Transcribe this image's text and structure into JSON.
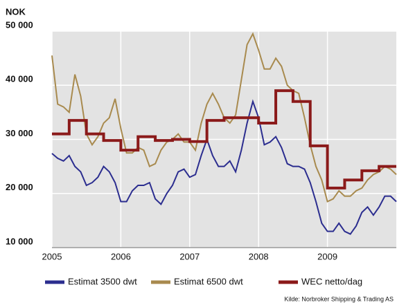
{
  "chart_data": {
    "type": "line",
    "y_axis_label": "NOK",
    "source": "Kilde: Norbroker Shipping & Trading AS",
    "xlim": [
      2005,
      2010
    ],
    "xticks": [
      2005,
      2006,
      2007,
      2008,
      2009
    ],
    "ylim": [
      10000,
      50000
    ],
    "yticks": [
      {
        "value": 10000,
        "label": "10 000"
      },
      {
        "value": 20000,
        "label": "20 000"
      },
      {
        "value": 30000,
        "label": "30 000"
      },
      {
        "value": 40000,
        "label": "40 000"
      },
      {
        "value": 50000,
        "label": "50 000"
      }
    ],
    "grid": true,
    "x": [
      2005,
      2005.083,
      2005.167,
      2005.25,
      2005.333,
      2005.417,
      2005.5,
      2005.583,
      2005.667,
      2005.75,
      2005.833,
      2005.917,
      2006,
      2006.083,
      2006.167,
      2006.25,
      2006.333,
      2006.417,
      2006.5,
      2006.583,
      2006.667,
      2006.75,
      2006.833,
      2006.917,
      2007,
      2007.083,
      2007.167,
      2007.25,
      2007.333,
      2007.417,
      2007.5,
      2007.583,
      2007.667,
      2007.75,
      2007.833,
      2007.917,
      2008,
      2008.083,
      2008.167,
      2008.25,
      2008.333,
      2008.417,
      2008.5,
      2008.583,
      2008.667,
      2008.75,
      2008.833,
      2008.917,
      2009,
      2009.083,
      2009.167,
      2009.25,
      2009.333,
      2009.417,
      2009.5,
      2009.583,
      2009.667,
      2009.75,
      2009.833,
      2009.917,
      2010
    ],
    "series": [
      {
        "name": "Estimat 3500 dwt",
        "color": "#2b2d8f",
        "step": false,
        "values": [
          27400,
          26500,
          26000,
          27000,
          25000,
          24000,
          21500,
          22000,
          23000,
          25000,
          24000,
          22000,
          18500,
          18500,
          20500,
          21500,
          21500,
          22000,
          19000,
          18000,
          20000,
          21500,
          24000,
          24500,
          23000,
          23500,
          27000,
          30000,
          27000,
          25000,
          25000,
          26000,
          24000,
          28000,
          33000,
          37000,
          34000,
          29000,
          29500,
          30500,
          28500,
          25500,
          25000,
          25000,
          24500,
          22000,
          18500,
          14500,
          13000,
          13000,
          14500,
          13000,
          12500,
          14000,
          16500,
          17500,
          16000,
          17500,
          19500,
          19500,
          18500
        ]
      },
      {
        "name": "Estimat 6500 dwt",
        "color": "#a88a4e",
        "step": false,
        "values": [
          45500,
          36500,
          36000,
          35000,
          42000,
          38000,
          31000,
          29000,
          30500,
          33000,
          34000,
          37500,
          32000,
          27500,
          27500,
          28500,
          28000,
          25000,
          25500,
          28000,
          29500,
          30000,
          31000,
          29500,
          29500,
          28000,
          33000,
          36500,
          38500,
          36500,
          34000,
          33000,
          34500,
          41000,
          47500,
          49500,
          46500,
          43000,
          43000,
          45000,
          43500,
          40000,
          39000,
          38500,
          34000,
          29000,
          25000,
          22500,
          18500,
          19000,
          20500,
          19500,
          19500,
          20500,
          21000,
          22500,
          23500,
          24000,
          25000,
          24500,
          23500
        ]
      },
      {
        "name": "WEC netto/dag",
        "color": "#8b1a1a",
        "step": true,
        "values": [
          31000,
          31000,
          31000,
          33500,
          33500,
          33500,
          31000,
          31000,
          31000,
          29800,
          29800,
          29800,
          28000,
          28000,
          28000,
          30500,
          30500,
          30500,
          29800,
          29800,
          29800,
          30000,
          30000,
          30000,
          29600,
          29600,
          29600,
          33500,
          33500,
          33500,
          34000,
          34000,
          34000,
          34000,
          34000,
          34000,
          33000,
          33000,
          33000,
          39000,
          39000,
          39000,
          37000,
          37000,
          37000,
          28800,
          28800,
          28800,
          21000,
          21000,
          21000,
          22500,
          22500,
          22500,
          24200,
          24200,
          24200,
          25000,
          25000,
          25000,
          25000
        ]
      }
    ]
  }
}
